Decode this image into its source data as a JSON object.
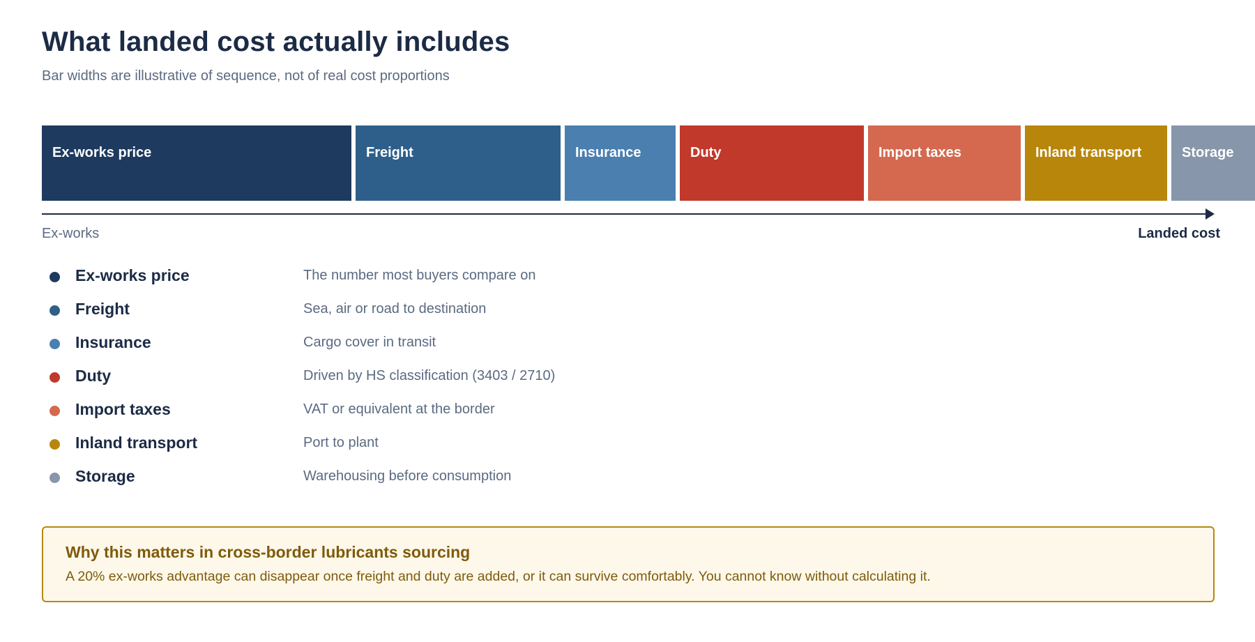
{
  "title": "What landed cost actually includes",
  "subtitle": "Bar widths are illustrative of sequence, not of real cost proportions",
  "components": [
    {
      "label": "Ex-works price",
      "description": "The number most buyers compare on",
      "color": "#1e3a5f"
    },
    {
      "label": "Freight",
      "description": "Sea, air or road to destination",
      "color": "#2e5f8a"
    },
    {
      "label": "Insurance",
      "description": "Cargo cover in transit",
      "color": "#4a7fb0"
    },
    {
      "label": "Duty",
      "description": "Driven by HS classification (3403 / 2710)",
      "color": "#c0392b"
    },
    {
      "label": "Import taxes",
      "description": "VAT or equivalent at the border",
      "color": "#d4694f"
    },
    {
      "label": "Inland transport",
      "description": "Port to plant",
      "color": "#b8860b"
    },
    {
      "label": "Storage",
      "description": "Warehousing before consumption",
      "color": "#8896ab"
    }
  ],
  "axis": {
    "start_label": "Ex-works",
    "end_label": "Landed cost"
  },
  "callout": {
    "title": "Why this matters in cross-border lubricants sourcing",
    "body": "A 20% ex-works advantage can disappear once freight and duty are added, or it can survive comfortably. You cannot know without calculating it.",
    "border_color": "#b8880f",
    "background_color": "#fdf8ea"
  }
}
